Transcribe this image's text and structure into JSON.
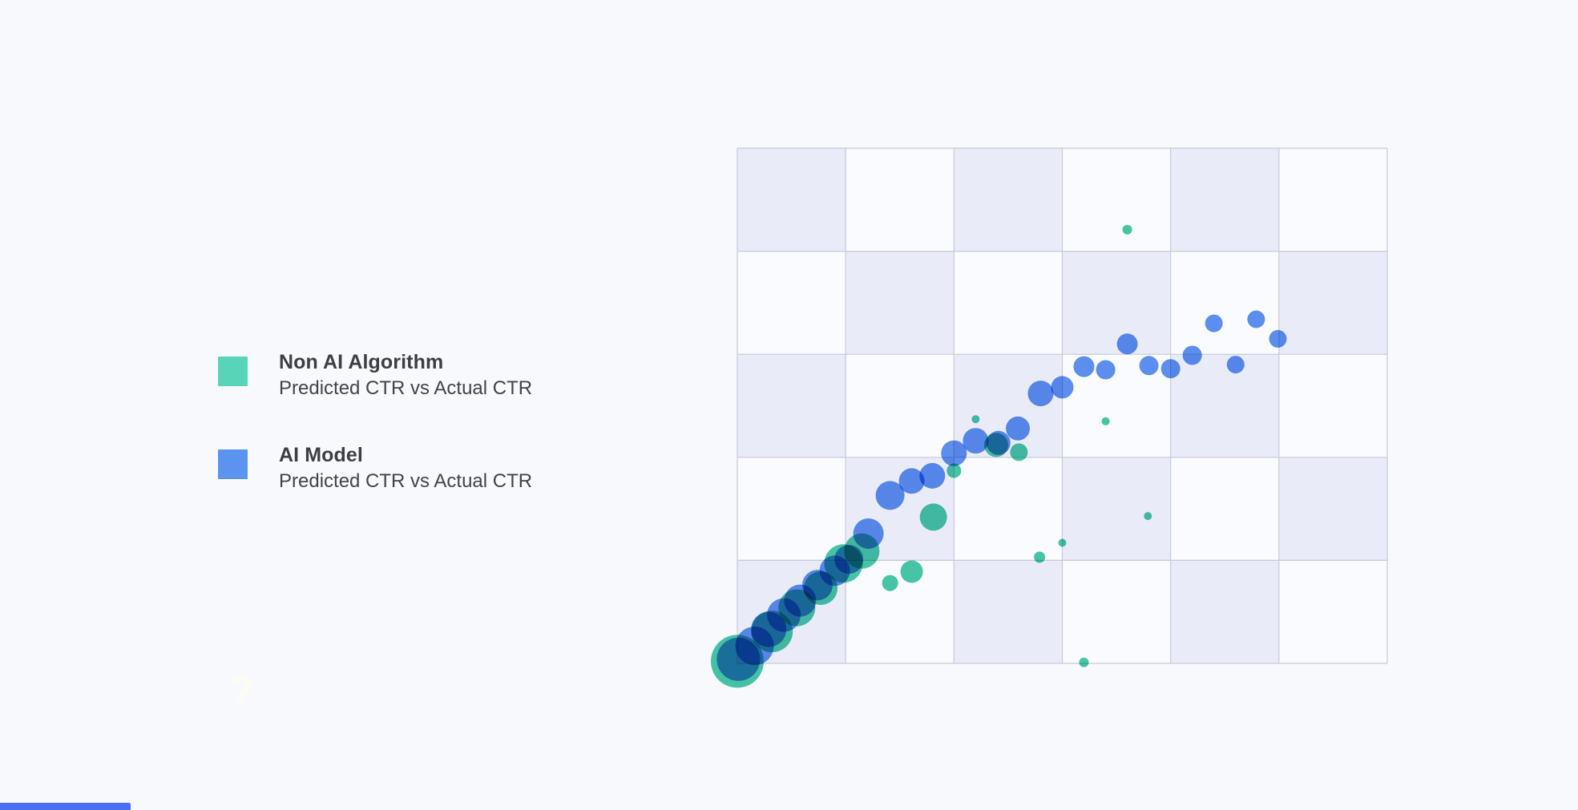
{
  "page": {
    "background": "#f8f9fd",
    "watermark": "?",
    "partial_bar_color": "#4c6ef5"
  },
  "legend": {
    "items": [
      {
        "label": "Non AI Algorithm",
        "sublabel": "Predicted CTR vs Actual CTR",
        "color": "#58d4b8"
      },
      {
        "label": "AI Model",
        "sublabel": "Predicted CTR vs Actual CTR",
        "color": "#5b94ee"
      }
    ]
  },
  "chart_data": {
    "type": "scatter",
    "title": "",
    "xlabel": "",
    "ylabel": "",
    "axes_labels_visible": false,
    "x_range": [
      0,
      6
    ],
    "y_range": [
      0,
      5
    ],
    "grid": {
      "style": "checkerboard",
      "columns": 6,
      "rows": 5,
      "cell_color_a": "#e9ebf9",
      "cell_color_b": "#fafbfe",
      "line_color": "#c6c9d8"
    },
    "series": [
      {
        "name": "Non AI Algorithm",
        "color": "#47c7a6",
        "points": [
          {
            "x": 0.0,
            "y": 0.02,
            "r": 33
          },
          {
            "x": 0.32,
            "y": 0.31,
            "r": 26
          },
          {
            "x": 0.55,
            "y": 0.54,
            "r": 23
          },
          {
            "x": 0.77,
            "y": 0.73,
            "r": 21
          },
          {
            "x": 0.98,
            "y": 0.97,
            "r": 24
          },
          {
            "x": 1.15,
            "y": 1.09,
            "r": 22
          },
          {
            "x": 1.41,
            "y": 0.78,
            "r": 10
          },
          {
            "x": 1.61,
            "y": 0.89,
            "r": 14
          },
          {
            "x": 1.81,
            "y": 1.42,
            "r": 17
          },
          {
            "x": 2.0,
            "y": 1.87,
            "r": 9
          },
          {
            "x": 2.2,
            "y": 2.37,
            "r": 5
          },
          {
            "x": 2.39,
            "y": 2.12,
            "r": 15
          },
          {
            "x": 2.6,
            "y": 2.05,
            "r": 11
          },
          {
            "x": 2.79,
            "y": 1.03,
            "r": 7
          },
          {
            "x": 3.0,
            "y": 1.17,
            "r": 5
          },
          {
            "x": 3.2,
            "y": 0.01,
            "r": 6
          },
          {
            "x": 3.4,
            "y": 2.35,
            "r": 5
          },
          {
            "x": 3.6,
            "y": 4.21,
            "r": 6
          },
          {
            "x": 3.79,
            "y": 1.43,
            "r": 5
          }
        ]
      },
      {
        "name": "AI Model",
        "color": "#5e90ee",
        "points": [
          {
            "x": 0.01,
            "y": 0.04,
            "r": 27
          },
          {
            "x": 0.16,
            "y": 0.17,
            "r": 24
          },
          {
            "x": 0.29,
            "y": 0.33,
            "r": 22
          },
          {
            "x": 0.43,
            "y": 0.47,
            "r": 21
          },
          {
            "x": 0.58,
            "y": 0.61,
            "r": 20
          },
          {
            "x": 0.74,
            "y": 0.76,
            "r": 19
          },
          {
            "x": 0.9,
            "y": 0.9,
            "r": 19
          },
          {
            "x": 1.03,
            "y": 1.01,
            "r": 18
          },
          {
            "x": 1.21,
            "y": 1.26,
            "r": 19
          },
          {
            "x": 1.41,
            "y": 1.63,
            "r": 18
          },
          {
            "x": 1.61,
            "y": 1.77,
            "r": 16
          },
          {
            "x": 1.8,
            "y": 1.82,
            "r": 16
          },
          {
            "x": 2.0,
            "y": 2.04,
            "r": 16
          },
          {
            "x": 2.2,
            "y": 2.16,
            "r": 16
          },
          {
            "x": 2.41,
            "y": 2.14,
            "r": 15
          },
          {
            "x": 2.59,
            "y": 2.28,
            "r": 15
          },
          {
            "x": 2.8,
            "y": 2.62,
            "r": 16
          },
          {
            "x": 3.0,
            "y": 2.68,
            "r": 14
          },
          {
            "x": 3.2,
            "y": 2.88,
            "r": 13
          },
          {
            "x": 3.4,
            "y": 2.85,
            "r": 12
          },
          {
            "x": 3.6,
            "y": 3.1,
            "r": 13
          },
          {
            "x": 3.8,
            "y": 2.89,
            "r": 12
          },
          {
            "x": 4.0,
            "y": 2.86,
            "r": 12
          },
          {
            "x": 4.2,
            "y": 2.99,
            "r": 12
          },
          {
            "x": 4.4,
            "y": 3.3,
            "r": 11
          },
          {
            "x": 4.6,
            "y": 2.9,
            "r": 11
          },
          {
            "x": 4.79,
            "y": 3.34,
            "r": 11
          },
          {
            "x": 4.99,
            "y": 3.15,
            "r": 11
          }
        ]
      }
    ]
  }
}
